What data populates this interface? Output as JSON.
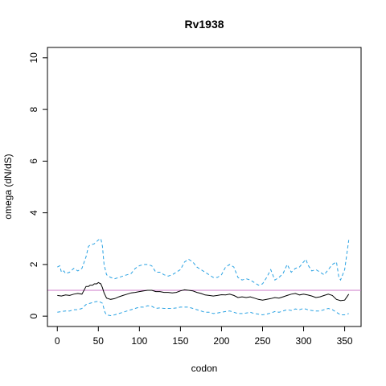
{
  "chart_data": {
    "type": "line",
    "title": "Rv1938",
    "xlabel": "codon",
    "ylabel": "omega (dN/dS)",
    "xlim": [
      -12,
      370
    ],
    "ylim": [
      -0.4,
      10.4
    ],
    "xticks": [
      0,
      50,
      100,
      150,
      200,
      250,
      300,
      350
    ],
    "yticks": [
      0,
      2,
      4,
      6,
      8,
      10
    ],
    "reference_line": {
      "y": 1,
      "color": "#cc79c9"
    },
    "grid": false,
    "series": [
      {
        "role": "estimate",
        "color": "#000000",
        "style": "solid",
        "x": [
          0,
          5,
          10,
          15,
          20,
          25,
          30,
          35,
          38,
          40,
          43,
          45,
          48,
          50,
          53,
          55,
          57,
          60,
          65,
          70,
          75,
          80,
          85,
          90,
          95,
          100,
          105,
          110,
          115,
          120,
          125,
          130,
          135,
          140,
          145,
          150,
          155,
          160,
          165,
          170,
          175,
          180,
          185,
          190,
          195,
          200,
          205,
          210,
          215,
          220,
          225,
          230,
          235,
          240,
          245,
          250,
          255,
          260,
          265,
          270,
          275,
          280,
          285,
          290,
          295,
          300,
          305,
          310,
          315,
          320,
          325,
          330,
          335,
          340,
          345,
          350,
          355
        ],
        "y": [
          0.8,
          0.78,
          0.82,
          0.8,
          0.85,
          0.88,
          0.85,
          1.15,
          1.15,
          1.2,
          1.2,
          1.25,
          1.25,
          1.3,
          1.25,
          1.1,
          0.9,
          0.7,
          0.65,
          0.68,
          0.75,
          0.8,
          0.85,
          0.9,
          0.92,
          0.95,
          0.98,
          1.0,
          1.0,
          0.95,
          0.95,
          0.92,
          0.92,
          0.9,
          0.92,
          0.98,
          1.02,
          1.0,
          0.98,
          0.92,
          0.88,
          0.82,
          0.8,
          0.78,
          0.8,
          0.83,
          0.82,
          0.85,
          0.8,
          0.72,
          0.75,
          0.72,
          0.75,
          0.7,
          0.65,
          0.62,
          0.65,
          0.68,
          0.72,
          0.7,
          0.75,
          0.8,
          0.85,
          0.88,
          0.82,
          0.85,
          0.82,
          0.78,
          0.72,
          0.75,
          0.8,
          0.85,
          0.8,
          0.65,
          0.6,
          0.62,
          0.85
        ]
      },
      {
        "role": "upper",
        "color": "#29a2e3",
        "style": "dashed",
        "x": [
          0,
          3,
          5,
          8,
          10,
          15,
          20,
          25,
          30,
          35,
          38,
          40,
          45,
          50,
          53,
          55,
          57,
          60,
          65,
          70,
          75,
          80,
          85,
          90,
          95,
          100,
          105,
          110,
          115,
          120,
          125,
          130,
          135,
          140,
          145,
          150,
          155,
          160,
          165,
          170,
          175,
          180,
          185,
          190,
          195,
          200,
          205,
          210,
          215,
          220,
          225,
          230,
          235,
          240,
          245,
          250,
          255,
          260,
          263,
          265,
          270,
          275,
          280,
          285,
          290,
          295,
          300,
          303,
          305,
          310,
          315,
          320,
          325,
          330,
          335,
          340,
          343,
          345,
          350,
          355
        ],
        "y": [
          1.9,
          1.95,
          1.7,
          1.75,
          1.65,
          1.7,
          1.85,
          1.75,
          1.85,
          2.3,
          2.7,
          2.75,
          2.8,
          2.95,
          3.0,
          2.7,
          2.0,
          1.6,
          1.5,
          1.45,
          1.5,
          1.55,
          1.6,
          1.65,
          1.85,
          1.95,
          2.0,
          2.0,
          1.95,
          1.7,
          1.7,
          1.6,
          1.55,
          1.6,
          1.7,
          1.8,
          2.1,
          2.2,
          2.1,
          1.9,
          1.8,
          1.7,
          1.6,
          1.5,
          1.5,
          1.6,
          1.9,
          2.0,
          1.9,
          1.5,
          1.4,
          1.45,
          1.4,
          1.3,
          1.2,
          1.25,
          1.5,
          1.8,
          1.55,
          1.4,
          1.5,
          1.65,
          2.0,
          1.7,
          1.85,
          1.9,
          2.1,
          2.2,
          2.0,
          1.75,
          1.8,
          1.7,
          1.6,
          1.8,
          2.0,
          2.1,
          1.5,
          1.4,
          1.8,
          2.95
        ]
      },
      {
        "role": "lower",
        "color": "#29a2e3",
        "style": "dashed",
        "x": [
          0,
          5,
          10,
          15,
          20,
          25,
          30,
          35,
          40,
          45,
          50,
          55,
          58,
          60,
          65,
          70,
          75,
          80,
          85,
          90,
          95,
          100,
          105,
          110,
          115,
          120,
          125,
          130,
          135,
          140,
          145,
          150,
          155,
          160,
          165,
          170,
          175,
          180,
          185,
          190,
          195,
          200,
          205,
          210,
          215,
          220,
          225,
          230,
          235,
          240,
          245,
          250,
          255,
          260,
          265,
          270,
          275,
          280,
          285,
          290,
          295,
          300,
          305,
          310,
          315,
          320,
          325,
          330,
          335,
          340,
          345,
          350,
          355
        ],
        "y": [
          0.15,
          0.18,
          0.2,
          0.2,
          0.25,
          0.25,
          0.3,
          0.45,
          0.5,
          0.55,
          0.58,
          0.5,
          0.15,
          0.05,
          0.02,
          0.05,
          0.1,
          0.15,
          0.2,
          0.25,
          0.3,
          0.35,
          0.35,
          0.4,
          0.38,
          0.3,
          0.32,
          0.3,
          0.3,
          0.3,
          0.32,
          0.35,
          0.35,
          0.35,
          0.3,
          0.25,
          0.2,
          0.15,
          0.15,
          0.1,
          0.12,
          0.15,
          0.18,
          0.2,
          0.15,
          0.1,
          0.1,
          0.12,
          0.15,
          0.1,
          0.08,
          0.05,
          0.08,
          0.12,
          0.18,
          0.15,
          0.2,
          0.25,
          0.22,
          0.28,
          0.25,
          0.3,
          0.25,
          0.22,
          0.2,
          0.2,
          0.25,
          0.3,
          0.25,
          0.15,
          0.05,
          0.05,
          0.1
        ]
      }
    ]
  }
}
